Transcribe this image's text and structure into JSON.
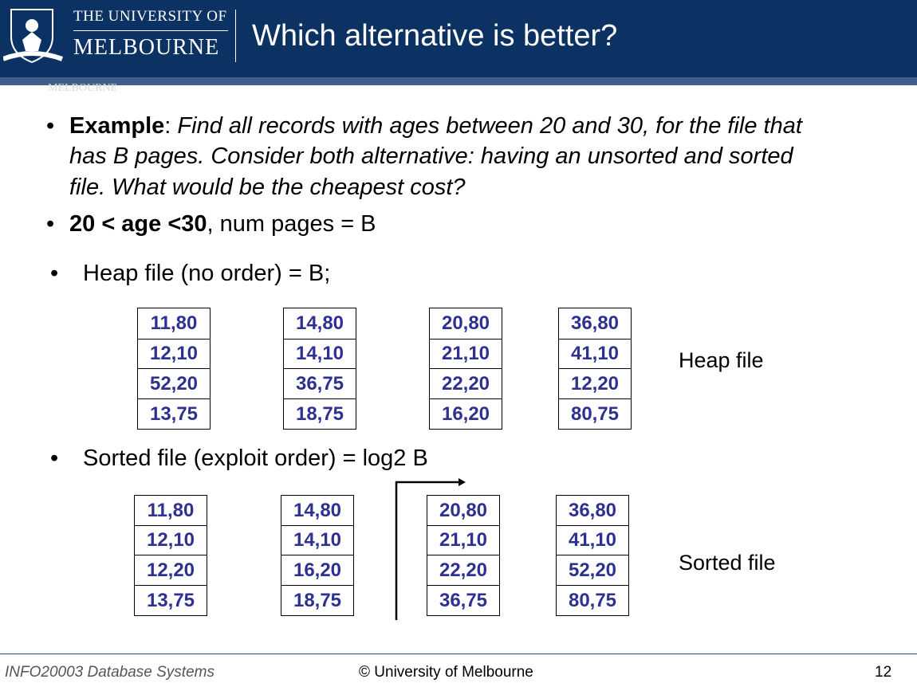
{
  "header": {
    "logo_line1": "THE UNIVERSITY OF",
    "logo_line2": "MELBOURNE",
    "title": "Which alternative is better?",
    "watermark": "MELBOURNE"
  },
  "bullets": {
    "example": {
      "bold": "Example",
      "sep": ":",
      "lines": [
        "Find all records with ages between 20 and 30, for the file that",
        "has B pages. Consider both alternative: having an unsorted and sorted",
        "file. What would be the cheapest cost?"
      ]
    },
    "condition": {
      "bold": "20 < age <30",
      "rest": ", num pages = B"
    },
    "heap": "Heap file (no order) = B;",
    "sorted": "Sorted file (exploit order) = log2 B"
  },
  "heap_pages": [
    [
      "11,80",
      "12,10",
      "52,20",
      "13,75"
    ],
    [
      "14,80",
      "14,10",
      "36,75",
      "18,75"
    ],
    [
      "20,80",
      "21,10",
      "22,20",
      "16,20"
    ],
    [
      "36,80",
      "41,10",
      "12,20",
      "80,75"
    ]
  ],
  "heap_label": "Heap file",
  "sorted_pages": [
    [
      "11,80",
      "12,10",
      "12,20",
      "13,75"
    ],
    [
      "14,80",
      "14,10",
      "16,20",
      "18,75"
    ],
    [
      "20,80",
      "21,10",
      "22,20",
      "36,75"
    ],
    [
      "36,80",
      "41,10",
      "52,20",
      "80,75"
    ]
  ],
  "sorted_label": "Sorted file",
  "footer": {
    "course": "INFO20003 Database Systems",
    "copyright": "© University of Melbourne",
    "page": "12"
  }
}
